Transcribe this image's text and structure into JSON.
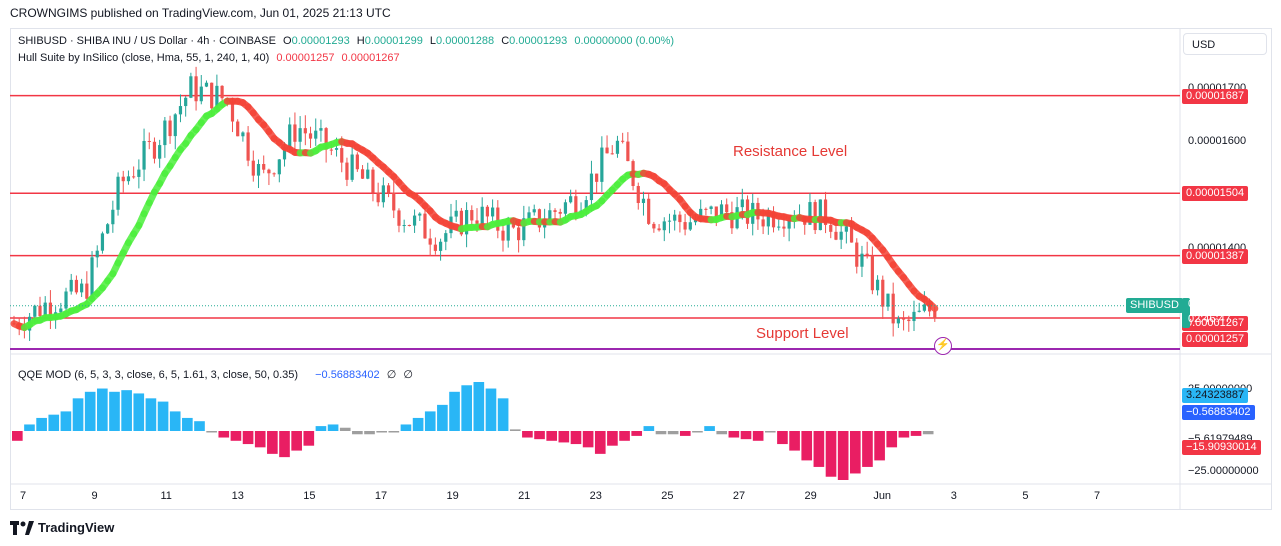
{
  "header": {
    "published": "CROWNGIMS published on TradingView.com, Jun 01, 2025 21:13 UTC"
  },
  "legend": {
    "symbol": "SHIBUSD · SHIBA INU / US Dollar · 4h · COINBASE",
    "o_label": "O",
    "o_value": "0.00001293",
    "h_label": "H",
    "h_value": "0.00001299",
    "l_label": "L",
    "l_value": "0.00001288",
    "c_label": "C",
    "c_value": "0.00001293",
    "change": "0.00000000 (0.00%)",
    "indicator": "Hull Suite by InSilico (close, Hma, 55, 1, 240, 1, 40)",
    "ind_v1": "0.00001257",
    "ind_v2": "0.00001267",
    "qqe": "QQE MOD (6, 5, 3, 3, close, 6, 5, 1.61, 3, close, 50, 0.35)",
    "qqe_value": "−0.56883402",
    "qqe_sym1": "∅",
    "qqe_sym2": "∅"
  },
  "currency": "USD",
  "annotations": {
    "resistance": "Resistance Level",
    "support": "Support Level"
  },
  "price_axis": {
    "ticks": [
      {
        "label": "0.00001700",
        "value": 1.7e-05
      },
      {
        "label": "0.00001600",
        "value": 1.6e-05
      },
      {
        "label": "0.00001400",
        "value": 1.4e-05
      },
      {
        "label": "0.00001252",
        "value": 1.252e-05
      }
    ],
    "tags": [
      {
        "label": "0.00001687",
        "value": 1.687e-05,
        "color": "#f23645"
      },
      {
        "label": "0.00001504",
        "value": 1.504e-05,
        "color": "#f23645"
      },
      {
        "label": "0.00001387",
        "value": 1.387e-05,
        "color": "#f23645"
      },
      {
        "label": "0.00001267",
        "value": 1.267e-05,
        "color": "#f23645"
      },
      {
        "label": "0.00001257",
        "value": 1.257e-05,
        "color": "#f23645"
      }
    ],
    "last": {
      "symbol": "SHIBUSD",
      "price": "0.00001293",
      "countdown": "02:46:47",
      "value": 1.293e-05,
      "color": "#22ab94"
    }
  },
  "qqe_axis": {
    "ticks": [
      {
        "label": "25.00000000",
        "value": 25
      },
      {
        "label": "−5.61979489",
        "value": -5.61979489
      },
      {
        "label": "−25.00000000",
        "value": -25
      }
    ],
    "tags": [
      {
        "label": "3.24323887",
        "value": 3.24323887,
        "color": "#29b6f6",
        "text": "#131722"
      },
      {
        "label": "−0.56883402",
        "value": -0.56883402,
        "color": "#2962ff",
        "text": "#ffffff"
      },
      {
        "label": "−15.90930014",
        "value": -15.90930014,
        "color": "#f23645",
        "text": "#ffffff"
      }
    ]
  },
  "x_axis": [
    "7",
    "9",
    "11",
    "13",
    "15",
    "17",
    "19",
    "21",
    "23",
    "25",
    "27",
    "29",
    "Jun",
    "3",
    "5",
    "7"
  ],
  "footer": {
    "brand": "TradingView"
  },
  "colors": {
    "up": "#26a69a",
    "down": "#ef5350",
    "hull_up": "#4cef3c",
    "hull_down": "#f44336",
    "level": "#f23645"
  },
  "chart_data": {
    "type": "candlestick",
    "timeframe": "4h",
    "price_range": [
      1.21e-05,
      1.75e-05
    ],
    "levels": [
      1.687e-05,
      1.504e-05,
      1.387e-05,
      1.27e-05
    ],
    "close_path": [
      {
        "d": "May 6",
        "v": 1.26e-05
      },
      {
        "d": "May 7",
        "v": 1.3e-05
      },
      {
        "d": "May 8",
        "v": 1.32e-05
      },
      {
        "d": "May 9",
        "v": 1.52e-05
      },
      {
        "d": "May 10",
        "v": 1.6e-05
      },
      {
        "d": "May 11",
        "v": 1.7e-05
      },
      {
        "d": "May 12",
        "v": 1.68e-05
      },
      {
        "d": "May 13",
        "v": 1.53e-05
      },
      {
        "d": "May 14",
        "v": 1.63e-05
      },
      {
        "d": "May 15",
        "v": 1.58e-05
      },
      {
        "d": "May 16",
        "v": 1.52e-05
      },
      {
        "d": "May 17",
        "v": 1.46e-05
      },
      {
        "d": "May 18",
        "v": 1.42e-05
      },
      {
        "d": "May 19",
        "v": 1.47e-05
      },
      {
        "d": "May 20",
        "v": 1.43e-05
      },
      {
        "d": "May 21",
        "v": 1.46e-05
      },
      {
        "d": "May 22",
        "v": 1.5e-05
      },
      {
        "d": "May 23",
        "v": 1.6e-05
      },
      {
        "d": "May 24",
        "v": 1.46e-05
      },
      {
        "d": "May 25",
        "v": 1.45e-05
      },
      {
        "d": "May 26",
        "v": 1.47e-05
      },
      {
        "d": "May 27",
        "v": 1.46e-05
      },
      {
        "d": "May 28",
        "v": 1.47e-05
      },
      {
        "d": "May 29",
        "v": 1.46e-05
      },
      {
        "d": "May 30",
        "v": 1.37e-05
      },
      {
        "d": "May 31",
        "v": 1.25e-05
      },
      {
        "d": "Jun 1",
        "v": 1.29e-05
      }
    ],
    "qqe_range": [
      -30,
      30
    ],
    "qqe_bars": [
      -6,
      4,
      8,
      10,
      12,
      20,
      24,
      26,
      24,
      25,
      23,
      20,
      18,
      12,
      8,
      6,
      0,
      -4,
      -6,
      -8,
      -10,
      -14,
      -16,
      -12,
      -9,
      3,
      4,
      2,
      -2,
      -2,
      0,
      0,
      4,
      8,
      12,
      16,
      24,
      28,
      30,
      26,
      20,
      1,
      -4,
      -5,
      -6,
      -7,
      -8,
      -10,
      -14,
      -9,
      -6,
      -3,
      3,
      -2,
      -2,
      -3,
      0,
      3,
      -2,
      -4,
      -5,
      -6,
      0,
      -8,
      -12,
      -18,
      -22,
      -28,
      -30,
      -26,
      -22,
      -18,
      -10,
      -4,
      -3,
      -2
    ]
  }
}
